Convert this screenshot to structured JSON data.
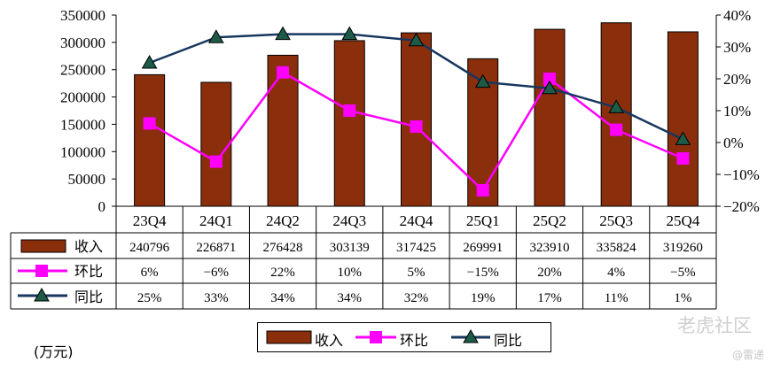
{
  "chart_data": {
    "type": "bar",
    "categories": [
      "23Q4",
      "24Q1",
      "24Q2",
      "24Q3",
      "24Q4",
      "25Q1",
      "25Q2",
      "25Q3",
      "25Q4"
    ],
    "series": [
      {
        "name": "收入",
        "kind": "bar",
        "axis": "left",
        "color": "#8b2e0b",
        "values": [
          240796,
          226871,
          276428,
          303139,
          317425,
          269991,
          323910,
          335824,
          319260
        ],
        "labels": [
          "240796",
          "226871",
          "276428",
          "303139",
          "317425",
          "269991",
          "323910",
          "335824",
          "319260"
        ]
      },
      {
        "name": "环比",
        "kind": "line",
        "axis": "right",
        "color": "#ff00ff",
        "marker": "square",
        "values": [
          6,
          -6,
          22,
          10,
          5,
          -15,
          20,
          4,
          -5
        ],
        "labels": [
          "6%",
          "−6%",
          "22%",
          "10%",
          "5%",
          "−15%",
          "20%",
          "4%",
          "−5%"
        ]
      },
      {
        "name": "同比",
        "kind": "line",
        "axis": "right",
        "color": "#17375e",
        "marker": "triangle",
        "values": [
          25,
          33,
          34,
          34,
          32,
          19,
          17,
          11,
          1
        ],
        "labels": [
          "25%",
          "33%",
          "34%",
          "34%",
          "32%",
          "19%",
          "17%",
          "11%",
          "1%"
        ]
      }
    ],
    "y_left": {
      "min": 0,
      "max": 350000,
      "ticks": [
        "0",
        "50000",
        "100000",
        "150000",
        "200000",
        "250000",
        "300000",
        "350000"
      ]
    },
    "y_right": {
      "min": -20,
      "max": 40,
      "ticks": [
        "−20%",
        "−10%",
        "0%",
        "10%",
        "20%",
        "30%",
        "40%"
      ]
    },
    "unit_label": "(万元)",
    "legend_position": "bottom-center",
    "grid": false
  },
  "watermark": {
    "main": "老虎社区",
    "sub": "@雷递"
  }
}
